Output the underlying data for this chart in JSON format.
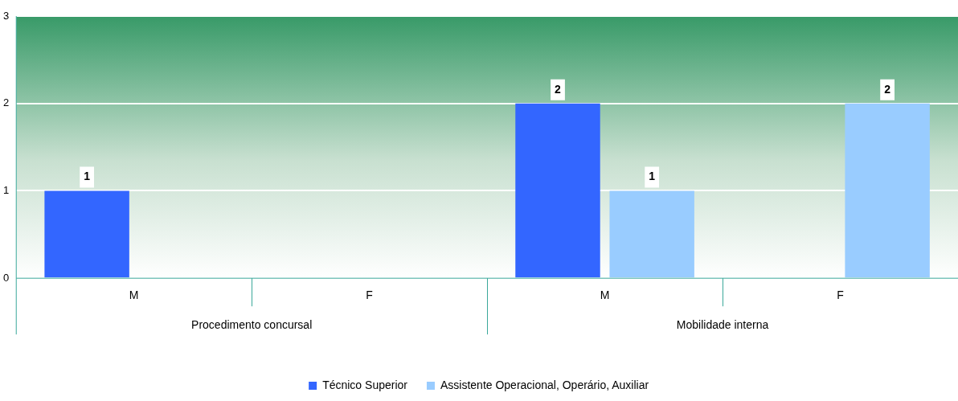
{
  "chart_data": {
    "type": "bar",
    "categories": [
      "M",
      "F",
      "M",
      "F"
    ],
    "series": [
      {
        "name": "Técnico Superior",
        "color": "#3366ff",
        "values": [
          1,
          null,
          2,
          null
        ]
      },
      {
        "name": "Assistente Operacional, Operário, Auxiliar",
        "color": "#99ccff",
        "values": [
          null,
          null,
          1,
          2
        ]
      }
    ],
    "ylim": [
      0,
      3
    ],
    "yticks": [
      0,
      1,
      2,
      3
    ],
    "grid": "y",
    "legend": "bottom",
    "data_labels": true,
    "annotations": [
      "Procedimento concursal",
      "Mobilidade interna"
    ]
  }
}
